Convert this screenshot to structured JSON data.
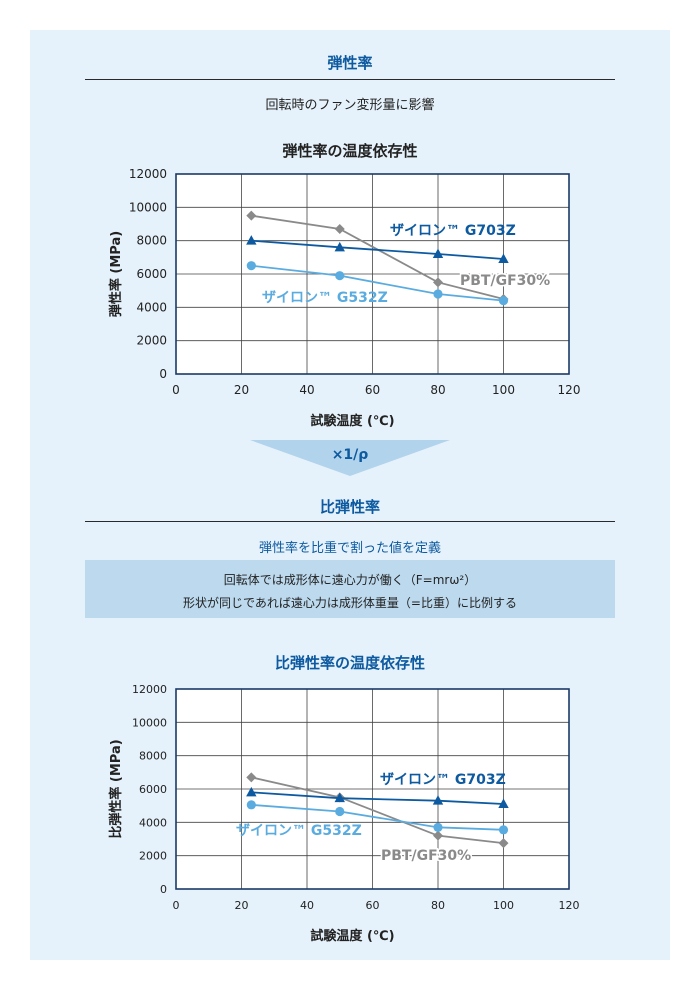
{
  "section1": {
    "title": "弾性率",
    "subtitle": "回転時のファン変形量に影響"
  },
  "arrow": {
    "label": "×1/ρ"
  },
  "section2": {
    "title": "比弾性率",
    "subtitle": "弾性率を比重で割った値を定義",
    "notes": [
      "回転体では成形体に遠心力が働く（F=mrω²）",
      "形状が同じであれば遠心力は成形体重量（=比重）に比例する"
    ]
  },
  "colors": {
    "g703z": "#0d5aa0",
    "g532z": "#5aace0",
    "pbt": "#8a8a8a",
    "accent": "#0d5aa0",
    "panel": "#e6f2fb",
    "band": "#bcd9ee"
  },
  "chart_data": [
    {
      "type": "line",
      "title": "弾性率の温度依存性",
      "xlabel": "試験温度 (℃)",
      "ylabel": "弾性率 (MPa)",
      "xlim": [
        0,
        120
      ],
      "ylim": [
        0,
        12000
      ],
      "xticks": [
        0,
        20,
        40,
        60,
        80,
        100,
        120
      ],
      "yticks": [
        0,
        2000,
        4000,
        6000,
        8000,
        10000,
        12000
      ],
      "grid": true,
      "series": [
        {
          "name": "ザイロン™ G703Z",
          "key": "g703z",
          "marker": "triangle",
          "x": [
            23,
            50,
            80,
            100
          ],
          "y": [
            8000,
            7600,
            7200,
            6900
          ]
        },
        {
          "name": "ザイロン™ G532Z",
          "key": "g532z",
          "marker": "circle",
          "x": [
            23,
            50,
            80,
            100
          ],
          "y": [
            6500,
            5900,
            4800,
            4400
          ]
        },
        {
          "name": "PBT/GF30%",
          "key": "pbt",
          "marker": "diamond",
          "x": [
            23,
            50,
            80,
            100
          ],
          "y": [
            9500,
            8700,
            5500,
            4500
          ]
        }
      ]
    },
    {
      "type": "line",
      "title": "比弾性率の温度依存性",
      "xlabel": "試験温度 (℃)",
      "ylabel": "比弾性率 (MPa)",
      "xlim": [
        0,
        120
      ],
      "ylim": [
        0,
        12000
      ],
      "xticks": [
        0,
        20,
        40,
        60,
        80,
        100,
        120
      ],
      "yticks": [
        0,
        2000,
        4000,
        6000,
        8000,
        10000,
        12000
      ],
      "grid": true,
      "series": [
        {
          "name": "ザイロン™ G703Z",
          "key": "g703z",
          "marker": "triangle",
          "x": [
            23,
            50,
            80,
            100
          ],
          "y": [
            5800,
            5450,
            5300,
            5100
          ]
        },
        {
          "name": "ザイロン™ G532Z",
          "key": "g532z",
          "marker": "circle",
          "x": [
            23,
            50,
            80,
            100
          ],
          "y": [
            5050,
            4650,
            3700,
            3550
          ]
        },
        {
          "name": "PBT/GF30%",
          "key": "pbt",
          "marker": "diamond",
          "x": [
            23,
            50,
            80,
            100
          ],
          "y": [
            6700,
            5500,
            3200,
            2750
          ]
        }
      ]
    }
  ]
}
